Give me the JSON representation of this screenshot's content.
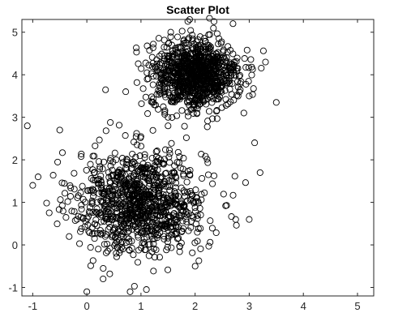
{
  "chart_data": {
    "type": "scatter",
    "title": "Scatter Plot",
    "xlabel": "",
    "ylabel": "",
    "xlim": [
      -1.2,
      5.3
    ],
    "ylim": [
      -1.2,
      5.3
    ],
    "xticks": [
      -1,
      0,
      1,
      2,
      3,
      4,
      5
    ],
    "yticks": [
      -1,
      0,
      1,
      2,
      3,
      4,
      5
    ],
    "x_tick_labels": [
      "-1",
      "0",
      "1",
      "2",
      "3",
      "4",
      "5"
    ],
    "y_tick_labels": [
      "-1",
      "0",
      "1",
      "2",
      "3",
      "4",
      "5"
    ],
    "grid": false,
    "marker": "open-circle",
    "marker_color": "#000000",
    "series": [
      {
        "cluster_center": [
          1,
          1
        ],
        "cluster_std": 0.6,
        "count": 1000,
        "outlier_points": [
          [
            -1.1,
            2.8
          ],
          [
            -1.0,
            1.4
          ],
          [
            -0.9,
            1.6
          ],
          [
            -0.5,
            2.7
          ],
          [
            0.0,
            -1.1
          ],
          [
            0.8,
            -1.1
          ],
          [
            1.1,
            -1.05
          ],
          [
            1.5,
            2.8
          ],
          [
            3.0,
            0.6
          ],
          [
            3.2,
            1.7
          ],
          [
            0.3,
            -0.8
          ],
          [
            2.0,
            -0.5
          ]
        ]
      },
      {
        "cluster_center": [
          2,
          4
        ],
        "cluster_std": 0.4,
        "count": 1000,
        "outlier_points": [
          [
            1.9,
            5.3
          ],
          [
            2.35,
            5.25
          ],
          [
            2.7,
            5.2
          ],
          [
            3.3,
            4.3
          ],
          [
            3.5,
            3.35
          ],
          [
            3.0,
            3.5
          ],
          [
            1.5,
            3.0
          ],
          [
            2.9,
            3.1
          ],
          [
            3.1,
            2.4
          ],
          [
            1.55,
            5.0
          ]
        ]
      }
    ]
  }
}
